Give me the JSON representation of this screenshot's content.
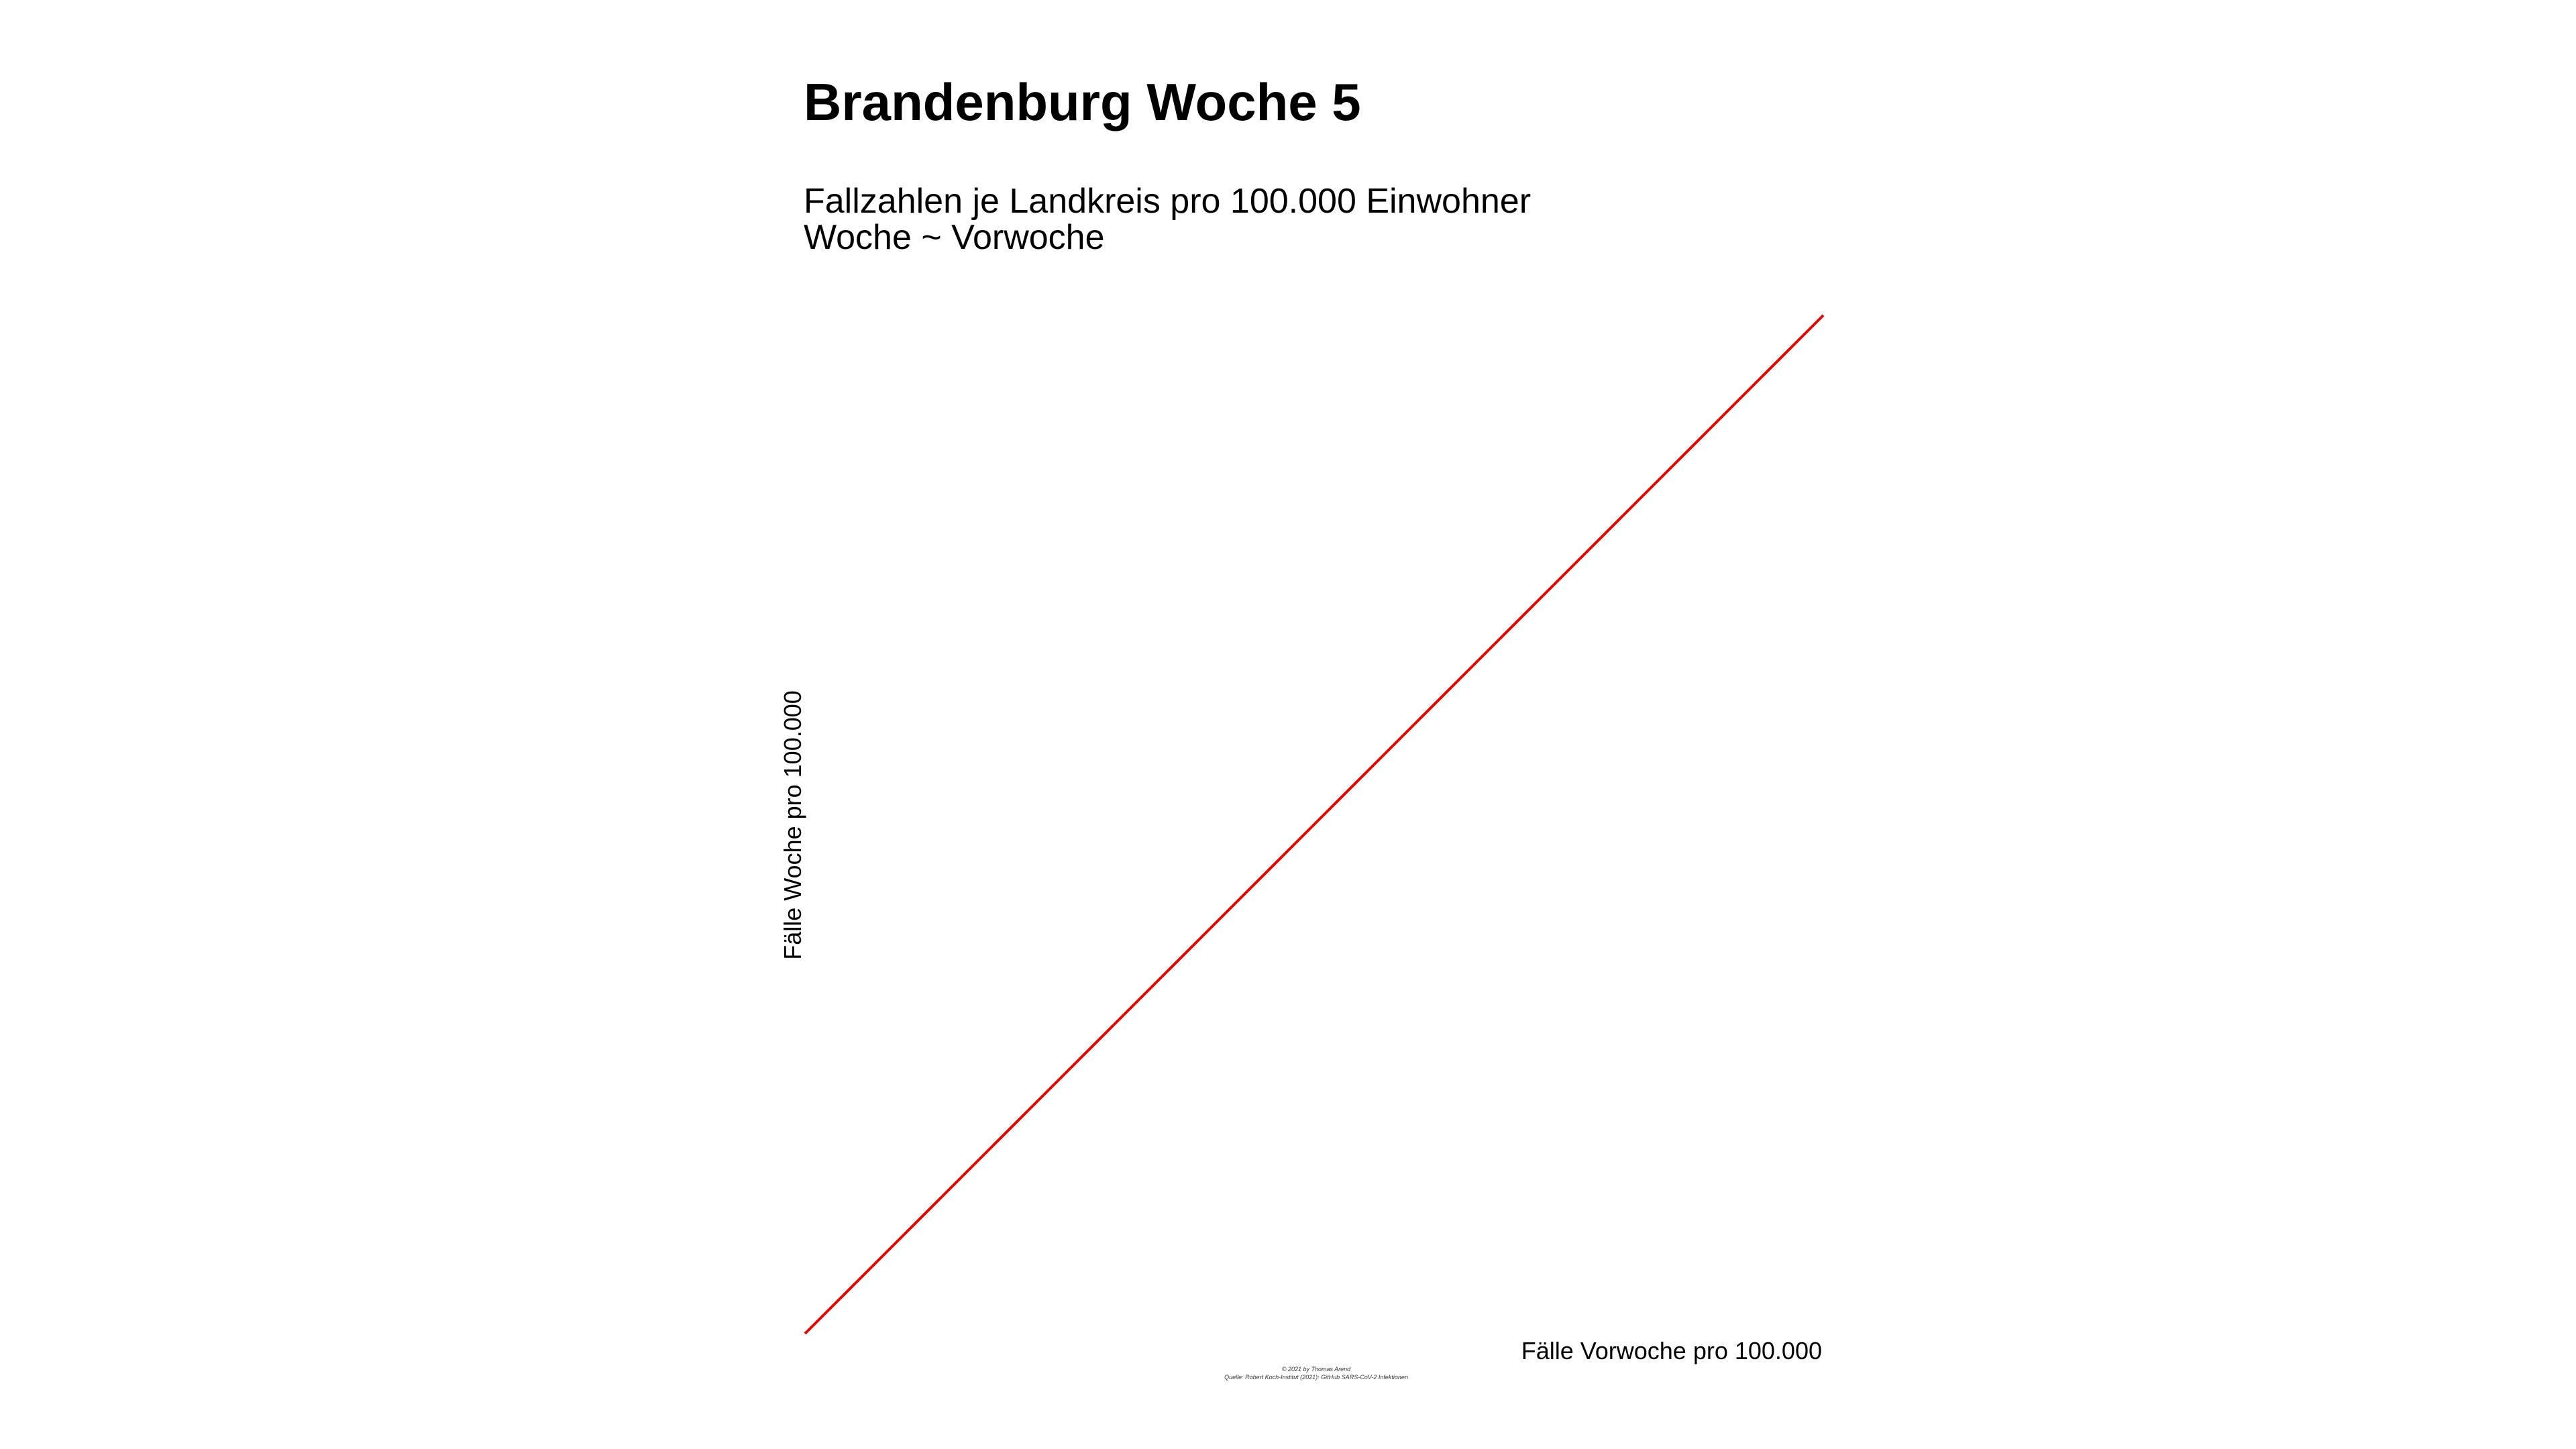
{
  "chart_data": {
    "type": "line",
    "title": "Brandenburg Woche 5",
    "subtitle_lines": [
      "Fallzahlen je Landkreis pro 100.000 Einwohner",
      "Woche ~ Vorwoche"
    ],
    "xlabel": "Fälle Vorwoche pro 100.000",
    "ylabel": "Fälle Woche pro 100.000",
    "xlim": [
      0,
      1
    ],
    "ylim": [
      0,
      1
    ],
    "grid": false,
    "series": [
      {
        "color": "#e00000",
        "x": [
          0,
          1
        ],
        "y": [
          0,
          1
        ]
      }
    ],
    "caption_lines": [
      "© 2021 by Thomas Arend",
      "Quelle: Robert Koch-Institut (2021): GitHub SARS-CoV-2 Infektionen"
    ]
  }
}
